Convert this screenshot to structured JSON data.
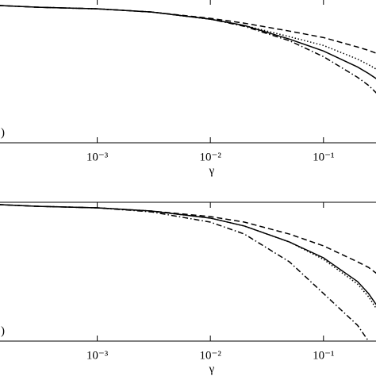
{
  "chart_data": [
    {
      "type": "line",
      "xlabel": "γ",
      "annotation": ")",
      "xscale": "log",
      "xlim": [
        0.000136,
        0.296
      ],
      "ylim": [
        0,
        1
      ],
      "xticks": [
        {
          "value": 0.001,
          "label": "10⁻³"
        },
        {
          "value": 0.01,
          "label": "10⁻²"
        },
        {
          "value": 0.1,
          "label": "10⁻¹"
        }
      ],
      "x": [
        0.000136,
        0.0003,
        0.001,
        0.003,
        0.01,
        0.02,
        0.05,
        0.1,
        0.2,
        0.25,
        0.296
      ],
      "series": [
        {
          "color": "#000000",
          "style": "solid",
          "values": [
            0.956,
            0.944,
            0.933,
            0.911,
            0.861,
            0.817,
            0.722,
            0.639,
            0.528,
            0.483,
            0.444
          ]
        },
        {
          "color": "#000000",
          "style": "dashed",
          "values": [
            0.956,
            0.944,
            0.933,
            0.911,
            0.867,
            0.833,
            0.778,
            0.733,
            0.667,
            0.644,
            0.622
          ]
        },
        {
          "color": "#000000",
          "style": "dotted",
          "values": [
            0.956,
            0.944,
            0.933,
            0.911,
            0.861,
            0.817,
            0.739,
            0.678,
            0.583,
            0.544,
            0.511
          ]
        },
        {
          "color": "#000000",
          "style": "dashdot",
          "values": [
            0.956,
            0.944,
            0.933,
            0.911,
            0.861,
            0.811,
            0.711,
            0.6,
            0.456,
            0.4,
            0.344
          ]
        }
      ]
    },
    {
      "type": "line",
      "xlabel": "γ",
      "annotation": ")",
      "xscale": "log",
      "xlim": [
        0.000136,
        0.296
      ],
      "ylim": [
        0,
        1
      ],
      "xticks": [
        {
          "value": 0.001,
          "label": "10⁻³"
        },
        {
          "value": 0.01,
          "label": "10⁻²"
        },
        {
          "value": 0.1,
          "label": "10⁻¹"
        }
      ],
      "x": [
        0.000136,
        0.0003,
        0.001,
        0.003,
        0.01,
        0.02,
        0.05,
        0.1,
        0.2,
        0.25,
        0.296
      ],
      "series": [
        {
          "color": "#000000",
          "style": "solid",
          "values": [
            0.983,
            0.971,
            0.96,
            0.937,
            0.886,
            0.829,
            0.714,
            0.6,
            0.429,
            0.343,
            0.257
          ]
        },
        {
          "color": "#000000",
          "style": "dashed",
          "values": [
            0.983,
            0.971,
            0.96,
            0.937,
            0.897,
            0.857,
            0.771,
            0.686,
            0.571,
            0.531,
            0.486
          ]
        },
        {
          "color": "#000000",
          "style": "dotted",
          "values": [
            0.983,
            0.971,
            0.96,
            0.937,
            0.886,
            0.829,
            0.714,
            0.589,
            0.411,
            0.32,
            0.229
          ]
        },
        {
          "color": "#000000",
          "style": "dashdot",
          "values": [
            0.983,
            0.971,
            0.96,
            0.931,
            0.857,
            0.771,
            0.571,
            0.343,
            0.114,
            0,
            null
          ]
        }
      ]
    }
  ]
}
